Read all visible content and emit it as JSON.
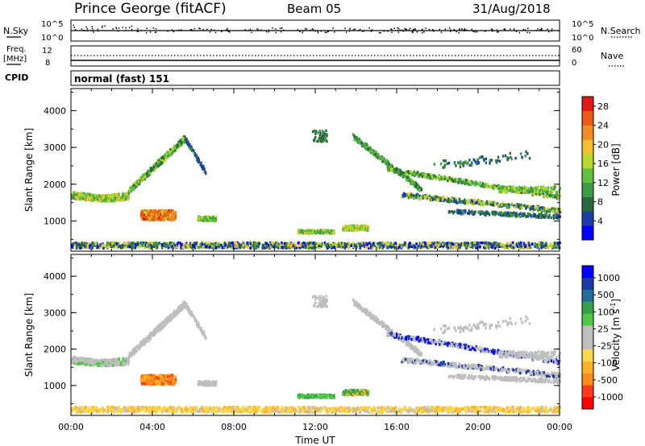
{
  "header": {
    "station": "Prince George (fitACF)",
    "beam": "Beam 05",
    "date": "31/Aug/2018"
  },
  "top_panels": {
    "nsky_label": "N.Sky",
    "nsearch_label": "N.Search",
    "noise_ticks": [
      "10^5",
      "10^0"
    ],
    "freq_label": "Freq.",
    "freq_unit": "[MHz]",
    "freq_ticks": [
      "12",
      "8"
    ],
    "nave_label": "Nave",
    "nave_ticks": [
      "60",
      "0"
    ],
    "cpid_label": "CPID",
    "cpid_value": "normal (fast) 151"
  },
  "colors": {
    "power_scale": [
      "#0000ff",
      "#1a3fa8",
      "#2a6a3a",
      "#3f9a48",
      "#5fc23a",
      "#b8d82a",
      "#f0c030",
      "#f08c20",
      "#ee5a10",
      "#e21818"
    ],
    "velocity_scale": [
      "#ff0000",
      "#ff3a1a",
      "#ff8c1a",
      "#ffb428",
      "#ffd84a",
      "#bebebe",
      "#bebebe",
      "#50c846",
      "#34a04a",
      "#246e9a",
      "#1a3aa8",
      "#0000ff"
    ]
  },
  "chart_data": [
    {
      "type": "heatmap",
      "name": "power",
      "ylabel": "Slant Range [km]",
      "xlabel": "",
      "x_ticks": [
        "00:00",
        "04:00",
        "08:00",
        "12:00",
        "16:00",
        "20:00",
        "00:00"
      ],
      "x_range_hours": [
        0,
        24
      ],
      "y_ticks": [
        1000,
        2000,
        3000,
        4000
      ],
      "ylim": [
        180,
        4600
      ],
      "colorbar": {
        "label": "Power [dB]",
        "ticks": [
          4,
          8,
          12,
          16,
          20,
          24,
          28
        ],
        "range": [
          0,
          30
        ]
      }
    },
    {
      "type": "heatmap",
      "name": "velocity",
      "ylabel": "Slant Range [km]",
      "xlabel": "Time UT",
      "x_ticks": [
        "00:00",
        "04:00",
        "08:00",
        "12:00",
        "16:00",
        "20:00",
        "00:00"
      ],
      "x_range_hours": [
        0,
        24
      ],
      "y_ticks": [
        1000,
        2000,
        3000,
        4000
      ],
      "ylim": [
        180,
        4600
      ],
      "colorbar": {
        "label": "Velocity [m s",
        "label_sup": "-1",
        "label_end": "]",
        "ticks": [
          "1000",
          "500",
          "100",
          "25",
          "-25",
          "-100",
          "-500",
          "-1000"
        ]
      }
    }
  ]
}
